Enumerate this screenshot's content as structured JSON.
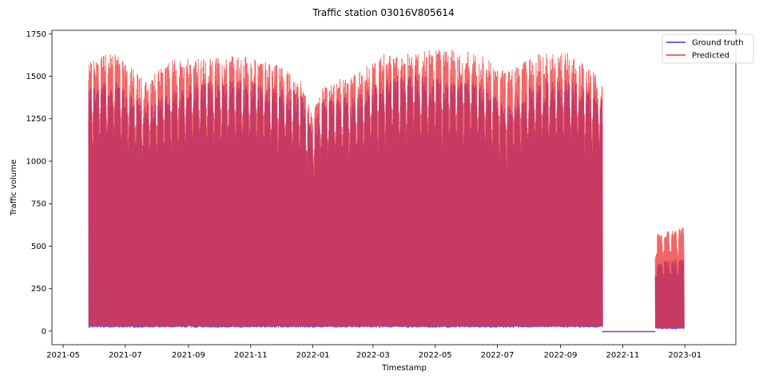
{
  "chart_data": {
    "type": "line",
    "title": "Traffic station 03016V805614",
    "xlabel": "Timestamp",
    "ylabel": "Traffic volume",
    "xlim": [
      "2021-04-20",
      "2023-02-20"
    ],
    "ylim": [
      -80,
      1770
    ],
    "x_ticks": [
      "2021-05-01",
      "2021-07-01",
      "2021-09-01",
      "2021-11-01",
      "2022-01-01",
      "2022-03-01",
      "2022-05-01",
      "2022-07-01",
      "2022-09-01",
      "2022-11-01",
      "2023-01-01"
    ],
    "x_tick_labels": [
      "2021-05",
      "2021-07",
      "2021-09",
      "2021-11",
      "2022-01",
      "2022-03",
      "2022-05",
      "2022-07",
      "2022-09",
      "2022-11",
      "2023-01"
    ],
    "y_ticks": [
      0,
      250,
      500,
      750,
      1000,
      1250,
      1500,
      1750
    ],
    "legend_position": "top-right",
    "series": [
      {
        "name": "Ground truth",
        "color": "#3333ee",
        "segments": [
          {
            "start": "2021-05-26",
            "end": "2022-10-12",
            "base": 20
          },
          {
            "start": "2022-12-03",
            "end": "2022-12-31",
            "base": 10
          }
        ],
        "envelope": [
          [
            "2021-05-26",
            1400
          ],
          [
            "2021-06-20",
            1450
          ],
          [
            "2021-07-20",
            1300
          ],
          [
            "2021-08-20",
            1400
          ],
          [
            "2021-09-20",
            1450
          ],
          [
            "2021-10-20",
            1450
          ],
          [
            "2021-11-20",
            1420
          ],
          [
            "2021-12-20",
            1380
          ],
          [
            "2021-12-31",
            1200
          ],
          [
            "2022-01-10",
            1350
          ],
          [
            "2022-02-10",
            1350
          ],
          [
            "2022-03-10",
            1450
          ],
          [
            "2022-04-10",
            1500
          ],
          [
            "2022-05-10",
            1450
          ],
          [
            "2022-06-10",
            1450
          ],
          [
            "2022-07-10",
            1300
          ],
          [
            "2022-08-10",
            1450
          ],
          [
            "2022-09-10",
            1450
          ],
          [
            "2022-10-12",
            1350
          ],
          [
            "2022-12-03",
            400
          ],
          [
            "2022-12-31",
            420
          ]
        ]
      },
      {
        "name": "Predicted",
        "color": "#ee3333",
        "segments": [
          {
            "start": "2021-05-26",
            "end": "2022-10-12",
            "base": 25
          },
          {
            "start": "2022-12-03",
            "end": "2022-12-31",
            "base": 15
          }
        ],
        "envelope": [
          [
            "2021-05-26",
            1550
          ],
          [
            "2021-06-20",
            1620
          ],
          [
            "2021-07-20",
            1450
          ],
          [
            "2021-08-20",
            1580
          ],
          [
            "2021-09-20",
            1580
          ],
          [
            "2021-10-20",
            1590
          ],
          [
            "2021-11-20",
            1560
          ],
          [
            "2021-12-20",
            1460
          ],
          [
            "2021-12-31",
            1250
          ],
          [
            "2022-01-10",
            1420
          ],
          [
            "2022-02-10",
            1480
          ],
          [
            "2022-03-10",
            1600
          ],
          [
            "2022-04-10",
            1620
          ],
          [
            "2022-05-10",
            1630
          ],
          [
            "2022-06-10",
            1610
          ],
          [
            "2022-07-10",
            1500
          ],
          [
            "2022-08-10",
            1600
          ],
          [
            "2022-09-10",
            1610
          ],
          [
            "2022-10-12",
            1450
          ],
          [
            "2022-12-03",
            560
          ],
          [
            "2022-12-31",
            600
          ]
        ]
      }
    ],
    "gap_interval": {
      "start": "2022-10-12",
      "end": "2022-12-03",
      "value": -2
    }
  }
}
